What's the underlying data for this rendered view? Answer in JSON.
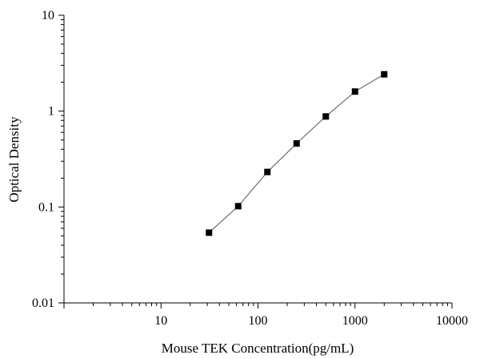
{
  "chart_data": {
    "type": "scatter",
    "xlabel": "Mouse TEK Concentration(pg/mL)",
    "ylabel": "Optical Density",
    "xscale": "log",
    "yscale": "log",
    "xlim": [
      1,
      10000
    ],
    "ylim": [
      0.01,
      10
    ],
    "x_ticks": [
      10,
      100,
      1000,
      10000
    ],
    "x_tick_labels": [
      "10",
      "100",
      "1000",
      "10000"
    ],
    "y_ticks": [
      0.01,
      0.1,
      1,
      10
    ],
    "y_tick_labels": [
      "0.01",
      "0.1",
      "1",
      "10"
    ],
    "grid": false,
    "legend": "none",
    "marker": "square",
    "line": "connected",
    "series": [
      {
        "x": [
          31.25,
          62.5,
          125,
          250,
          500,
          1000,
          2000
        ],
        "y": [
          0.054,
          0.102,
          0.232,
          0.46,
          0.88,
          1.6,
          2.42
        ]
      }
    ],
    "colors": {
      "marker": "#000000",
      "line": "#555555",
      "axis": "#000000"
    }
  }
}
